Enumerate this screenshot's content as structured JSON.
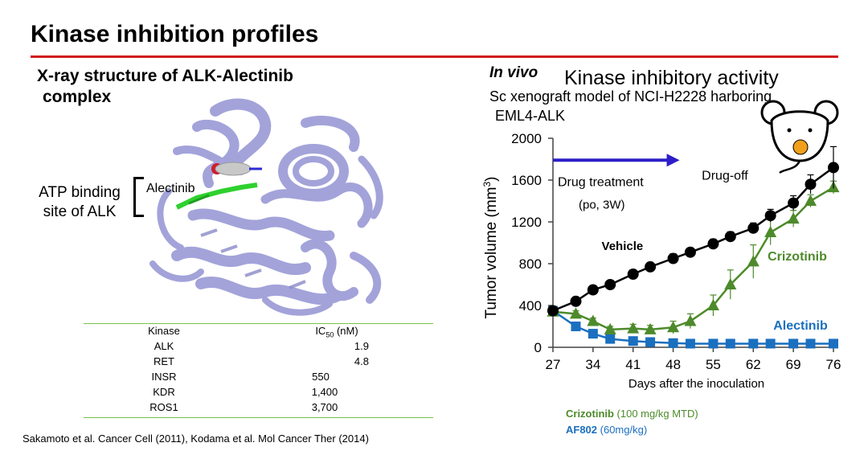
{
  "slide": {
    "title": "Kinase inhibition profiles",
    "citation": "Sakamoto et al. Cancer Cell (2011), Kodama et al. Mol Cancer Ther (2014)"
  },
  "xray": {
    "title_line1": "X-ray structure of ALK-Alectinib",
    "title_line2": "complex",
    "atp_label_line1": "ATP binding",
    "atp_label_line2": "site of ALK",
    "ligand_label": "Alectinib"
  },
  "ic50_table": {
    "header_kinase": "Kinase",
    "header_ic50_prefix": "IC",
    "header_ic50_sub": "50",
    "header_ic50_suffix": " (nM)",
    "rows": [
      {
        "kinase": "ALK",
        "ic50": "1.9"
      },
      {
        "kinase": "RET",
        "ic50": "4.8"
      },
      {
        "kinase": "INSR",
        "ic50": "550"
      },
      {
        "kinase": "KDR",
        "ic50": "1,400"
      },
      {
        "kinase": "ROS1",
        "ic50": "3,700"
      }
    ]
  },
  "invivo": {
    "label": "In vivo",
    "title": "Kinase inhibitory activity",
    "model_line1": "Sc xenograft model of NCI-H2228 harboring",
    "model_line2": "EML4-ALK"
  },
  "legend": {
    "crizotinib_name": "Crizotinib",
    "crizotinib_dose": " (100 mg/kg MTD)",
    "af802_name": "AF802",
    "af802_dose": " (60mg/kg)"
  },
  "colors": {
    "title_rule": "#d11a1a",
    "table_rule": "#7ac04a",
    "vehicle": "#000000",
    "crizotinib": "#4d8a2b",
    "alectinib": "#1a6fbf",
    "arrow": "#2d1fc7",
    "protein": "#9a9ad6",
    "mouse_tumor": "#f2a01c"
  },
  "chart_data": {
    "type": "line",
    "title": "",
    "xlabel": "Days after the inoculation",
    "ylabel": "Tumor volume (mm3)",
    "ylabel_main": "Tumor volume (mm",
    "ylabel_sup": "3",
    "ylabel_end": ")",
    "xlim": [
      27,
      76
    ],
    "ylim": [
      0,
      2000
    ],
    "x_ticks": [
      27,
      34,
      41,
      48,
      55,
      62,
      69,
      76
    ],
    "y_ticks": [
      0,
      400,
      800,
      1200,
      1600,
      2000
    ],
    "annotations": {
      "treatment_line1": "Drug treatment",
      "treatment_line2": "(po, 3W)",
      "treatment_arrow_start": 27,
      "treatment_arrow_end": 48,
      "treatment_arrow_level": 1790,
      "drug_off": "Drug-off"
    },
    "series": [
      {
        "name": "Vehicle",
        "marker": "circle",
        "x": [
          27,
          31,
          34,
          37,
          41,
          44,
          48,
          51,
          55,
          58,
          62,
          65,
          69,
          72,
          76
        ],
        "y": [
          350,
          440,
          550,
          600,
          700,
          770,
          850,
          910,
          990,
          1060,
          1140,
          1260,
          1380,
          1560,
          1720
        ],
        "err": [
          20,
          20,
          25,
          25,
          35,
          35,
          45,
          40,
          45,
          45,
          50,
          60,
          70,
          90,
          200
        ]
      },
      {
        "name": "Crizotinib",
        "marker": "triangle",
        "x": [
          27,
          31,
          34,
          37,
          41,
          44,
          48,
          51,
          55,
          58,
          62,
          65,
          69,
          72,
          76
        ],
        "y": [
          340,
          320,
          250,
          170,
          180,
          170,
          190,
          250,
          400,
          600,
          820,
          1100,
          1230,
          1400,
          1530
        ],
        "err": [
          20,
          30,
          30,
          30,
          40,
          40,
          60,
          70,
          100,
          140,
          160,
          120,
          80,
          60,
          60
        ]
      },
      {
        "name": "Alectinib",
        "marker": "square",
        "x": [
          27,
          31,
          34,
          37,
          41,
          44,
          48,
          51,
          55,
          58,
          62,
          65,
          69,
          72,
          76
        ],
        "y": [
          350,
          200,
          130,
          80,
          60,
          50,
          40,
          35,
          35,
          35,
          35,
          35,
          35,
          35,
          35
        ],
        "err": [
          20,
          20,
          15,
          10,
          10,
          8,
          5,
          5,
          5,
          5,
          5,
          5,
          5,
          5,
          5
        ]
      }
    ]
  }
}
